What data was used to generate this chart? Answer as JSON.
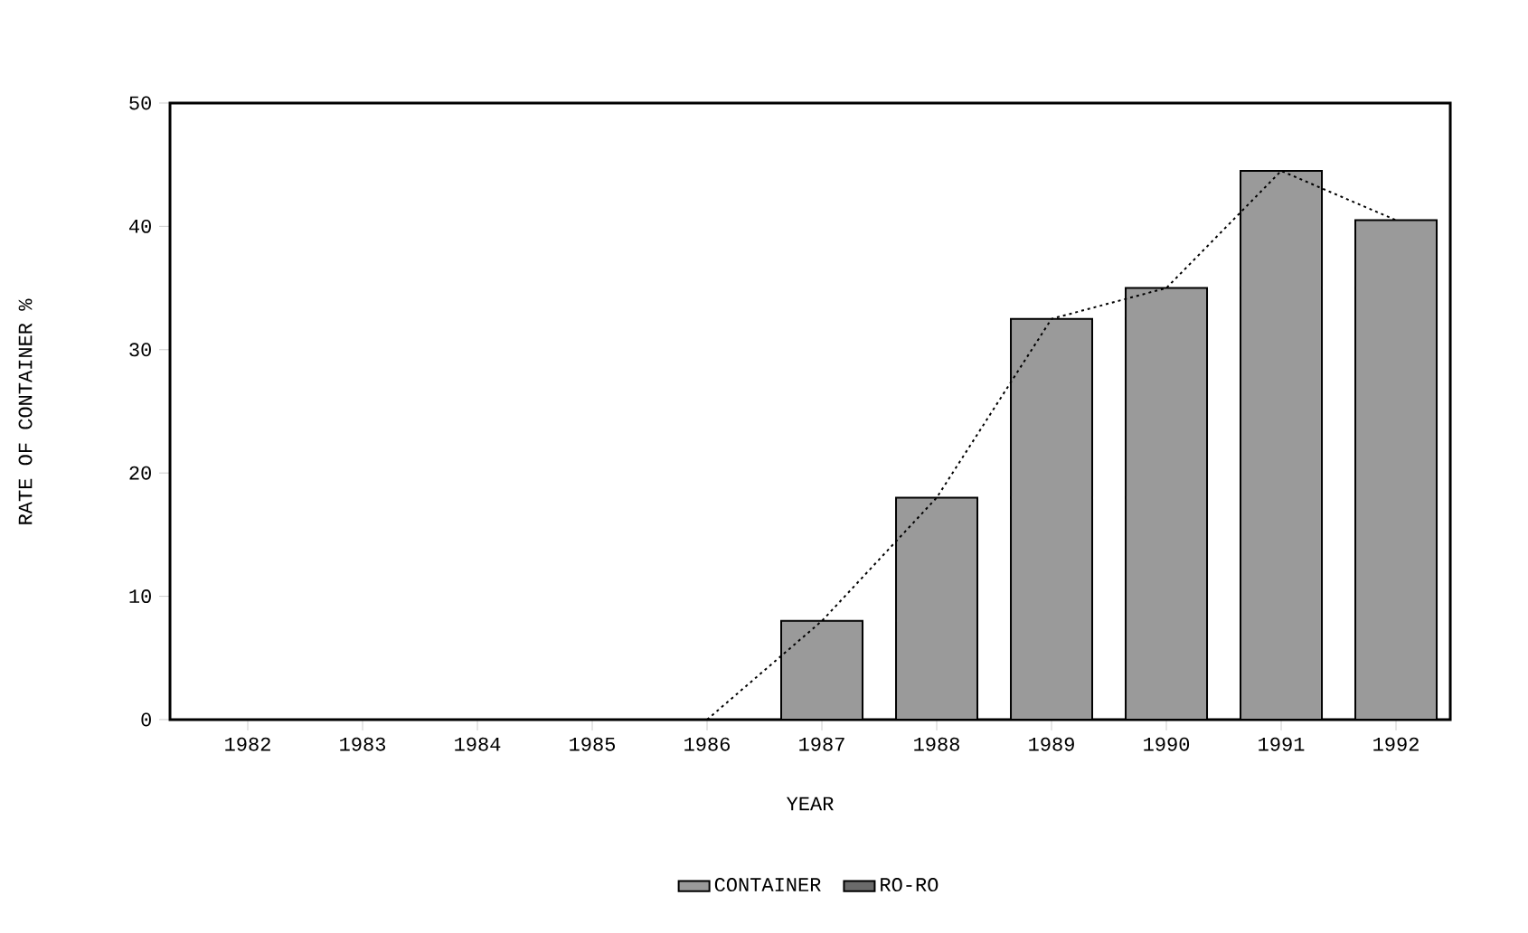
{
  "chart_data": {
    "type": "bar",
    "xlabel": "YEAR",
    "ylabel": "RATE OF CONTAINER %",
    "categories": [
      "1982",
      "1983",
      "1984",
      "1985",
      "1986",
      "1987",
      "1988",
      "1989",
      "1990",
      "1991",
      "1992"
    ],
    "series": [
      {
        "name": "CONTAINER",
        "color": "#9a9a9a",
        "values": [
          null,
          null,
          null,
          null,
          null,
          8,
          18,
          32.5,
          35,
          44.5,
          40.5
        ]
      },
      {
        "name": "RO-RO",
        "color": "#6a6a6a",
        "values": [
          null,
          null,
          null,
          null,
          null,
          null,
          null,
          null,
          null,
          null,
          null
        ]
      },
      {
        "type": "line",
        "color": "#000000",
        "line_style": "dotted",
        "marker": "none",
        "values": [
          null,
          null,
          null,
          null,
          0,
          8,
          18,
          32.5,
          35,
          44.5,
          40.5
        ]
      }
    ],
    "ylim": [
      0,
      50
    ],
    "yticks": [
      0,
      10,
      20,
      30,
      40,
      50
    ],
    "grid": false,
    "legend": "bottom"
  }
}
